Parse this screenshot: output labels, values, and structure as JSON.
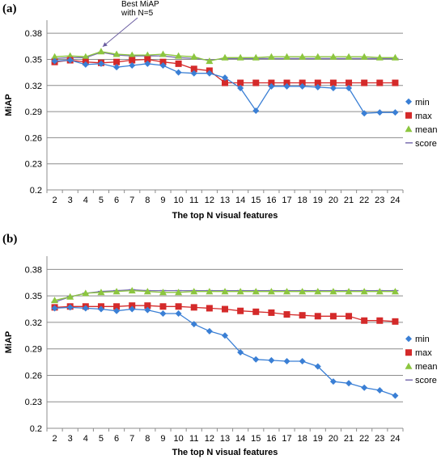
{
  "colors": {
    "min": "#3a7fd5",
    "max": "#d42a2a",
    "mean": "#8cc63f",
    "score": "#7b6fb0",
    "grid": "#8c8c8c"
  },
  "chart_data": [
    {
      "type": "line",
      "panel_label": "(a)",
      "xlabel": "The top N visual features",
      "ylabel": "MiAP",
      "categories": [
        2,
        3,
        4,
        5,
        6,
        7,
        8,
        9,
        10,
        11,
        12,
        13,
        14,
        15,
        16,
        17,
        18,
        19,
        20,
        21,
        22,
        23,
        24
      ],
      "ylim": [
        0.2,
        0.395
      ],
      "yticks": [
        0.2,
        0.23,
        0.26,
        0.29,
        0.32,
        0.35,
        0.38
      ],
      "ytick_labels": [
        "0.2",
        "0.23",
        "0.26",
        "0.29",
        "0.32",
        "0.35",
        "0.38"
      ],
      "grid": true,
      "legend": "right",
      "annotation": {
        "lines": [
          "Best MiAP",
          "with N=5"
        ],
        "target_x": 5
      },
      "series": [
        {
          "name": "min",
          "marker": "diamond",
          "values": [
            0.348,
            0.349,
            0.344,
            0.345,
            0.341,
            0.343,
            0.345,
            0.343,
            0.335,
            0.334,
            0.334,
            0.329,
            0.317,
            0.291,
            0.319,
            0.319,
            0.319,
            0.318,
            0.317,
            0.317,
            0.288,
            0.289,
            0.289
          ]
        },
        {
          "name": "max",
          "marker": "square",
          "values": [
            0.347,
            0.349,
            0.347,
            0.346,
            0.347,
            0.349,
            0.35,
            0.347,
            0.345,
            0.339,
            0.337,
            0.323,
            0.323,
            0.323,
            0.323,
            0.323,
            0.323,
            0.323,
            0.323,
            0.323,
            0.323,
            0.323,
            0.323
          ]
        },
        {
          "name": "mean",
          "marker": "triangle",
          "values": [
            0.353,
            0.354,
            0.353,
            0.359,
            0.356,
            0.355,
            0.355,
            0.356,
            0.354,
            0.353,
            0.348,
            0.352,
            0.352,
            0.352,
            0.353,
            0.353,
            0.353,
            0.353,
            0.353,
            0.353,
            0.353,
            0.352,
            0.352
          ]
        },
        {
          "name": "score",
          "marker": "dash",
          "values": [
            0.351,
            0.352,
            0.352,
            0.358,
            0.355,
            0.354,
            0.354,
            0.354,
            0.352,
            0.351,
            0.349,
            0.351,
            0.351,
            0.351,
            0.351,
            0.351,
            0.351,
            0.351,
            0.351,
            0.351,
            0.351,
            0.351,
            0.351
          ]
        }
      ]
    },
    {
      "type": "line",
      "panel_label": "(b)",
      "xlabel": "The top N visual features",
      "ylabel": "MiAP",
      "categories": [
        2,
        3,
        4,
        5,
        6,
        7,
        8,
        9,
        10,
        11,
        12,
        13,
        14,
        15,
        16,
        17,
        18,
        19,
        20,
        21,
        22,
        23,
        24
      ],
      "ylim": [
        0.2,
        0.395
      ],
      "yticks": [
        0.2,
        0.23,
        0.26,
        0.29,
        0.32,
        0.35,
        0.38
      ],
      "ytick_labels": [
        "0.2",
        "0.23",
        "0.26",
        "0.29",
        "0.32",
        "0.35",
        "0.38"
      ],
      "grid": true,
      "legend": "right",
      "series": [
        {
          "name": "min",
          "marker": "diamond",
          "values": [
            0.336,
            0.337,
            0.336,
            0.335,
            0.333,
            0.335,
            0.334,
            0.33,
            0.33,
            0.318,
            0.31,
            0.305,
            0.286,
            0.278,
            0.277,
            0.276,
            0.276,
            0.27,
            0.253,
            0.251,
            0.246,
            0.243,
            0.237
          ]
        },
        {
          "name": "max",
          "marker": "square",
          "values": [
            0.337,
            0.338,
            0.338,
            0.338,
            0.338,
            0.339,
            0.339,
            0.338,
            0.338,
            0.337,
            0.336,
            0.335,
            0.333,
            0.332,
            0.331,
            0.329,
            0.328,
            0.327,
            0.327,
            0.327,
            0.322,
            0.322,
            0.321
          ]
        },
        {
          "name": "mean",
          "marker": "triangle",
          "values": [
            0.345,
            0.349,
            0.353,
            0.354,
            0.355,
            0.356,
            0.355,
            0.354,
            0.354,
            0.355,
            0.355,
            0.355,
            0.355,
            0.355,
            0.355,
            0.355,
            0.355,
            0.355,
            0.355,
            0.355,
            0.355,
            0.355,
            0.355
          ]
        },
        {
          "name": "score",
          "marker": "dash",
          "values": [
            0.343,
            0.349,
            0.353,
            0.355,
            0.356,
            0.357,
            0.356,
            0.356,
            0.356,
            0.356,
            0.356,
            0.356,
            0.356,
            0.356,
            0.356,
            0.356,
            0.356,
            0.356,
            0.356,
            0.356,
            0.356,
            0.356,
            0.356
          ]
        }
      ]
    }
  ]
}
